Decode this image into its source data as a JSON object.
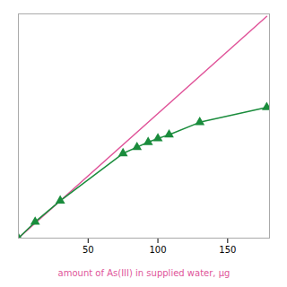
{
  "chart_data": {
    "type": "line",
    "xlabel": "amount of As(III) in supplied water, μg",
    "xlim": [
      0,
      180
    ],
    "ylim": [
      0,
      180
    ],
    "xticks": [
      50,
      100,
      150
    ],
    "grid": false,
    "tick_labels": "x",
    "series": [
      {
        "color": "#e0559a",
        "x": [
          0,
          178
        ],
        "values": [
          0,
          178
        ]
      },
      {
        "color": "#1a8c3c",
        "marker": "triangle",
        "x": [
          0,
          12,
          30,
          75,
          85,
          93,
          100,
          108,
          130,
          178
        ],
        "values": [
          0,
          13,
          30,
          68,
          73,
          77,
          80,
          83,
          93,
          105
        ]
      }
    ]
  }
}
